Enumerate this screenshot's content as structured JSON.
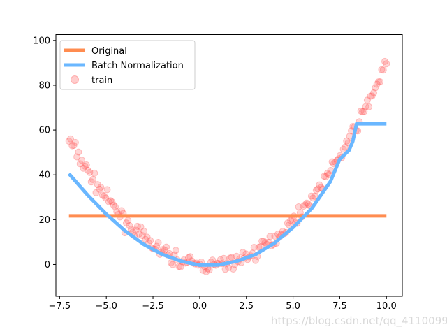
{
  "chart_data": {
    "type": "scatter",
    "title": "",
    "xlabel": "",
    "ylabel": "",
    "xlim": [
      -7.7,
      10.85
    ],
    "ylim": [
      -14.2,
      102.6
    ],
    "x_ticks": [
      -7.5,
      -5.0,
      -2.5,
      0.0,
      2.5,
      5.0,
      7.5,
      10.0
    ],
    "x_tick_labels": [
      "−7.5",
      "−5.0",
      "−2.5",
      "0.0",
      "2.5",
      "5.0",
      "7.5",
      "10.0"
    ],
    "y_ticks": [
      0,
      20,
      40,
      60,
      80,
      100
    ],
    "y_tick_labels": [
      "0",
      "20",
      "40",
      "60",
      "80",
      "100"
    ],
    "grid": false,
    "legend_position": "top-left",
    "legend": [
      "Original",
      "Batch Normalization",
      "train"
    ],
    "colors": {
      "original": "#ff8c50",
      "batch_norm": "#6ab7ff",
      "train": "#ff5a5a"
    },
    "series": [
      {
        "name": "Original",
        "kind": "line",
        "x": [
          -7,
          10
        ],
        "y": [
          21.7,
          21.7
        ]
      },
      {
        "name": "Batch Normalization",
        "kind": "line",
        "x": [
          -7,
          -6,
          -5,
          -4,
          -3,
          -2,
          -1,
          0,
          1,
          2,
          3,
          4,
          5,
          6,
          7,
          7.5,
          8.0,
          8.2,
          8.4,
          9,
          10
        ],
        "y": [
          40.5,
          31,
          22.5,
          15,
          9,
          4.5,
          1.5,
          -0.3,
          -0.2,
          1.5,
          4.5,
          9.5,
          16.5,
          25,
          37,
          47,
          51,
          55,
          62.8,
          62.8,
          62.8
        ]
      },
      {
        "name": "train",
        "kind": "scatter",
        "x_range": [
          -7,
          10
        ],
        "count": 200,
        "model": "y = (x - 0.5)^2 + noise"
      }
    ]
  },
  "watermark": "https://blog.csdn.net/qq_41100991"
}
